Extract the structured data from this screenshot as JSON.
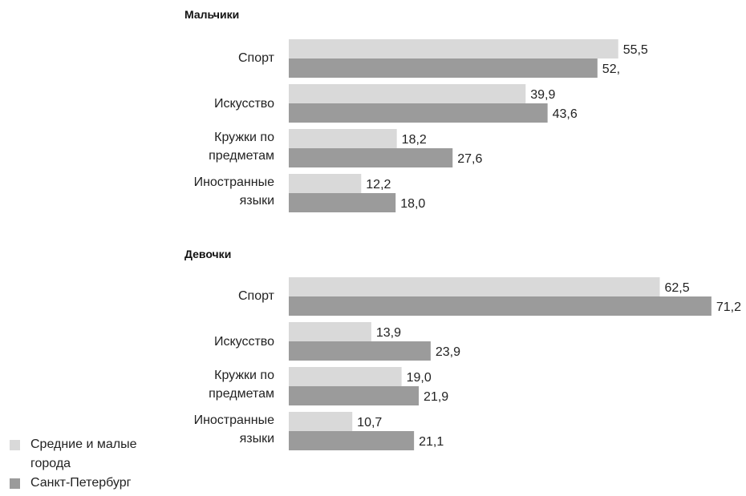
{
  "chart_data": [
    {
      "type": "bar",
      "orientation": "horizontal",
      "title": "Мальчики",
      "categories": [
        "Спорт",
        "Искусство",
        "Кружки по\nпредметам",
        "Иностранные\nязыки"
      ],
      "series": [
        {
          "name": "Средние и малые города",
          "values": [
            55.5,
            39.9,
            18.2,
            12.2
          ],
          "labels": [
            "55,5",
            "39,9",
            "18,2",
            "12,2"
          ]
        },
        {
          "name": "Санкт-Петербург",
          "values": [
            52.0,
            43.6,
            27.6,
            18.0
          ],
          "labels": [
            "52,",
            "43,6",
            "27,6",
            "18,0"
          ]
        }
      ]
    },
    {
      "type": "bar",
      "orientation": "horizontal",
      "title": "Девочки",
      "categories": [
        "Спорт",
        "Искусство",
        "Кружки по\nпредметам",
        "Иностранные\nязыки"
      ],
      "series": [
        {
          "name": "Средние и малые города",
          "values": [
            62.5,
            13.9,
            19.0,
            10.7
          ],
          "labels": [
            "62,5",
            "13,9",
            "19,0",
            "10,7"
          ]
        },
        {
          "name": "Санкт-Петербург",
          "values": [
            71.2,
            23.9,
            21.9,
            21.1
          ],
          "labels": [
            "71,2",
            "23,9",
            "21,9",
            "21,1"
          ]
        }
      ]
    }
  ],
  "legend": [
    {
      "label": "Средние и малые\nгорода",
      "color": "#d9d9d9"
    },
    {
      "label": "Санкт-Петербург",
      "color": "#9b9b9b"
    }
  ],
  "colors": {
    "light": "#d9d9d9",
    "dark": "#9b9b9b"
  }
}
